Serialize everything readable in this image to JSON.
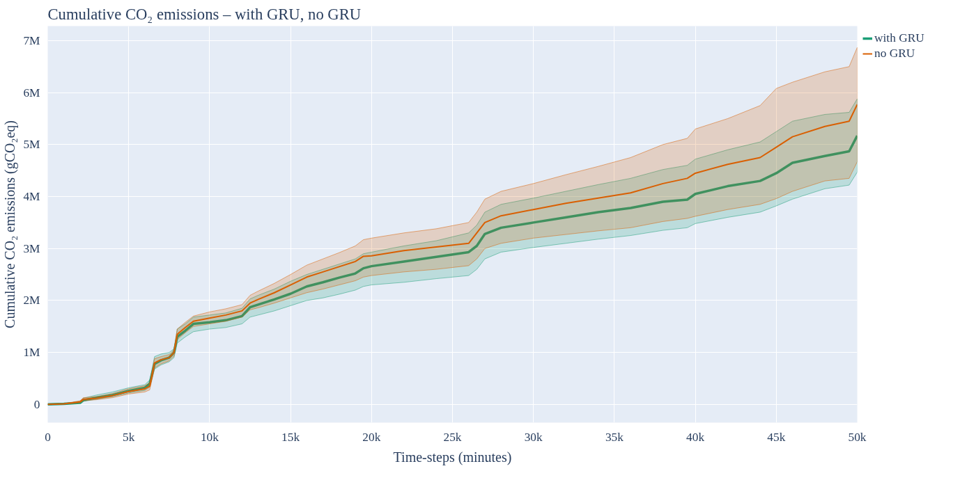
{
  "chart_data": {
    "type": "line",
    "title": "Cumulative CO₂ emissions – with GRU, no GRU",
    "xlabel": "Time-steps (minutes)",
    "ylabel": "Cumulative CO₂ emissions (gCO₂eq)",
    "x": [
      0,
      1000,
      2000,
      2200,
      3000,
      4000,
      5000,
      6000,
      6300,
      6600,
      7000,
      7500,
      7800,
      8000,
      8500,
      9000,
      10000,
      11000,
      12000,
      12500,
      13000,
      14000,
      15000,
      16000,
      17000,
      18000,
      19000,
      19500,
      20000,
      22000,
      24000,
      26000,
      26500,
      27000,
      28000,
      30000,
      32000,
      34000,
      36000,
      38000,
      39500,
      40000,
      42000,
      44000,
      45000,
      46000,
      48000,
      49500,
      50000
    ],
    "series": [
      {
        "name": "with GRU",
        "color": "#1b9e77",
        "values": [
          0,
          10000.0,
          30000.0,
          80000.0,
          130000.0,
          180000.0,
          260000.0,
          320000.0,
          400000.0,
          780000.0,
          850000.0,
          900000.0,
          1000000.0,
          1300000.0,
          1420000.0,
          1550000.0,
          1580000.0,
          1620000.0,
          1700000.0,
          1870000.0,
          1920000.0,
          2020000.0,
          2130000.0,
          2270000.0,
          2350000.0,
          2440000.0,
          2520000.0,
          2620000.0,
          2660000.0,
          2750000.0,
          2840000.0,
          2930000.0,
          3050000.0,
          3280000.0,
          3400000.0,
          3500000.0,
          3600000.0,
          3700000.0,
          3780000.0,
          3900000.0,
          3940000.0,
          4050000.0,
          4200000.0,
          4300000.0,
          4450000.0,
          4650000.0,
          4780000.0,
          4870000.0,
          5170000.0
        ],
        "lower": [
          0,
          5000.0,
          30000.0,
          60000.0,
          100000.0,
          150000.0,
          220000.0,
          270000.0,
          330000.0,
          680000.0,
          760000.0,
          820000.0,
          900000.0,
          1180000.0,
          1300000.0,
          1400000.0,
          1450000.0,
          1480000.0,
          1550000.0,
          1680000.0,
          1720000.0,
          1800000.0,
          1900000.0,
          2000000.0,
          2050000.0,
          2120000.0,
          2200000.0,
          2270000.0,
          2300000.0,
          2350000.0,
          2420000.0,
          2480000.0,
          2600000.0,
          2800000.0,
          2930000.0,
          3020000.0,
          3100000.0,
          3180000.0,
          3250000.0,
          3350000.0,
          3400000.0,
          3480000.0,
          3600000.0,
          3700000.0,
          3820000.0,
          3950000.0,
          4150000.0,
          4220000.0,
          4470000.0
        ],
        "upper": [
          0,
          15000.0,
          60000.0,
          120000.0,
          180000.0,
          240000.0,
          320000.0,
          380000.0,
          470000.0,
          920000.0,
          970000.0,
          1000000.0,
          1070000.0,
          1450000.0,
          1550000.0,
          1680000.0,
          1720000.0,
          1760000.0,
          1850000.0,
          2030000.0,
          2100000.0,
          2220000.0,
          2370000.0,
          2500000.0,
          2600000.0,
          2700000.0,
          2800000.0,
          2900000.0,
          2930000.0,
          3050000.0,
          3150000.0,
          3300000.0,
          3450000.0,
          3700000.0,
          3850000.0,
          3970000.0,
          4100000.0,
          4230000.0,
          4350000.0,
          4520000.0,
          4600000.0,
          4720000.0,
          4900000.0,
          5050000.0,
          5250000.0,
          5450000.0,
          5580000.0,
          5620000.0,
          5880000.0
        ]
      },
      {
        "name": "no GRU",
        "color": "#d95f02",
        "values": [
          0,
          10000.0,
          50000.0,
          100000.0,
          120000.0,
          170000.0,
          250000.0,
          300000.0,
          350000.0,
          800000.0,
          860000.0,
          900000.0,
          1000000.0,
          1350000.0,
          1480000.0,
          1600000.0,
          1660000.0,
          1720000.0,
          1800000.0,
          1950000.0,
          2020000.0,
          2150000.0,
          2300000.0,
          2450000.0,
          2550000.0,
          2650000.0,
          2750000.0,
          2850000.0,
          2860000.0,
          2960000.0,
          3030000.0,
          3100000.0,
          3300000.0,
          3500000.0,
          3630000.0,
          3750000.0,
          3870000.0,
          3970000.0,
          4070000.0,
          4250000.0,
          4350000.0,
          4450000.0,
          4620000.0,
          4750000.0,
          4950000.0,
          5150000.0,
          5350000.0,
          5450000.0,
          5770000.0
        ],
        "lower": [
          0,
          5000.0,
          30000.0,
          70000.0,
          90000.0,
          130000.0,
          200000.0,
          240000.0,
          280000.0,
          700000.0,
          780000.0,
          840000.0,
          930000.0,
          1250000.0,
          1380000.0,
          1500000.0,
          1550000.0,
          1600000.0,
          1680000.0,
          1820000.0,
          1860000.0,
          1950000.0,
          2050000.0,
          2150000.0,
          2220000.0,
          2300000.0,
          2380000.0,
          2450000.0,
          2480000.0,
          2550000.0,
          2600000.0,
          2670000.0,
          2800000.0,
          3000000.0,
          3100000.0,
          3200000.0,
          3270000.0,
          3340000.0,
          3400000.0,
          3520000.0,
          3580000.0,
          3620000.0,
          3750000.0,
          3850000.0,
          3960000.0,
          4100000.0,
          4300000.0,
          4350000.0,
          4670000.0
        ],
        "upper": [
          0,
          15000.0,
          70000.0,
          130000.0,
          150000.0,
          210000.0,
          300000.0,
          360000.0,
          420000.0,
          880000.0,
          920000.0,
          960000.0,
          1050000.0,
          1450000.0,
          1580000.0,
          1700000.0,
          1780000.0,
          1840000.0,
          1920000.0,
          2100000.0,
          2180000.0,
          2330000.0,
          2500000.0,
          2680000.0,
          2800000.0,
          2920000.0,
          3050000.0,
          3170000.0,
          3200000.0,
          3300000.0,
          3380000.0,
          3500000.0,
          3700000.0,
          3950000.0,
          4100000.0,
          4250000.0,
          4420000.0,
          4580000.0,
          4750000.0,
          5000000.0,
          5120000.0,
          5300000.0,
          5500000.0,
          5750000.0,
          6080000.0,
          6200000.0,
          6400000.0,
          6500000.0,
          6870000.0
        ]
      }
    ],
    "xlim": [
      0,
      50000
    ],
    "ylim": [
      -350000.0,
      7280000.0
    ],
    "xticks": [
      0,
      {
        "value": 5000,
        "label": "5k"
      },
      {
        "value": 10000,
        "label": "10k"
      },
      {
        "value": 15000,
        "label": "15k"
      },
      {
        "value": 20000,
        "label": "20k"
      },
      {
        "value": 25000,
        "label": "25k"
      },
      {
        "value": 30000,
        "label": "30k"
      },
      {
        "value": 35000,
        "label": "35k"
      },
      {
        "value": 40000,
        "label": "40k"
      },
      {
        "value": 45000,
        "label": "45k"
      },
      {
        "value": 50000,
        "label": "50k"
      }
    ],
    "yticks": [
      0,
      {
        "value": 1000000.0,
        "label": "1M"
      },
      {
        "value": 2000000.0,
        "label": "2M"
      },
      {
        "value": 3000000.0,
        "label": "3M"
      },
      {
        "value": 4000000.0,
        "label": "4M"
      },
      {
        "value": 5000000.0,
        "label": "5M"
      },
      {
        "value": 6000000.0,
        "label": "6M"
      },
      {
        "value": 7000000.0,
        "label": "7M"
      }
    ],
    "grid": true,
    "legend": "top right",
    "marker": "none",
    "line_style": "solid"
  }
}
